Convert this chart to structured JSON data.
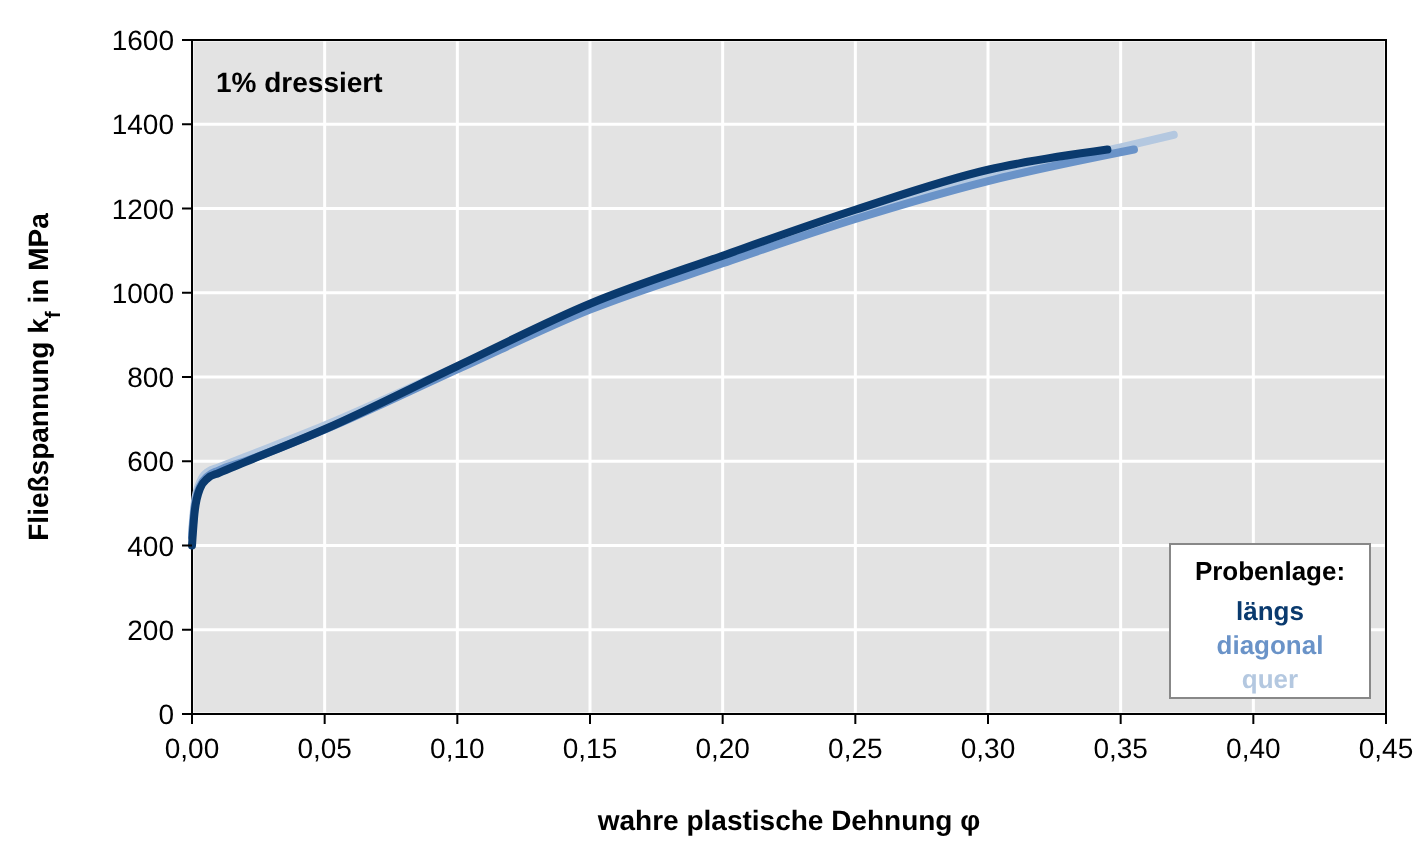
{
  "chart_data": {
    "type": "line",
    "xlabel": "wahre plastische Dehnung φ",
    "ylabel": "Fließspannung k$_{f}$ in MPa",
    "legend_title": "Probenlage:",
    "annotations": [
      "1% dressiert"
    ],
    "xlim": [
      0,
      0.45
    ],
    "xticks": [
      {
        "value": 0,
        "label": "0,00"
      },
      {
        "value": 0.05,
        "label": "0,05"
      },
      {
        "value": 0.1,
        "label": "0,10"
      },
      {
        "value": 0.15,
        "label": "0,15"
      },
      {
        "value": 0.2,
        "label": "0,20"
      },
      {
        "value": 0.25,
        "label": "0,25"
      },
      {
        "value": 0.3,
        "label": "0,30"
      },
      {
        "value": 0.35,
        "label": "0,35"
      },
      {
        "value": 0.4,
        "label": "0,40"
      },
      {
        "value": 0.45,
        "label": "0,45"
      }
    ],
    "ylim": [
      0,
      1600
    ],
    "yticks": [
      0,
      200,
      400,
      600,
      800,
      1000,
      1200,
      1400,
      1600
    ],
    "grid": true,
    "legend": "bottom right",
    "marker": "none",
    "line_style": "solid",
    "series": [
      {
        "name": "quer",
        "color": "#b4c8e0",
        "x": [
          0,
          0.001,
          0.003,
          0.006,
          0.01,
          0.02,
          0.05,
          0.1,
          0.15,
          0.2,
          0.25,
          0.3,
          0.35,
          0.37
        ],
        "values": [
          430,
          500,
          550,
          575,
          585,
          610,
          685,
          825,
          965,
          1075,
          1180,
          1275,
          1345,
          1375
        ]
      },
      {
        "name": "diagonal",
        "color": "#6a93c8",
        "x": [
          0,
          0.001,
          0.003,
          0.006,
          0.01,
          0.02,
          0.05,
          0.1,
          0.15,
          0.2,
          0.25,
          0.3,
          0.355
        ],
        "values": [
          420,
          490,
          540,
          565,
          578,
          600,
          675,
          818,
          960,
          1070,
          1175,
          1265,
          1340
        ]
      },
      {
        "name": "längs",
        "color": "#0a3a6e",
        "x": [
          0,
          0.001,
          0.003,
          0.006,
          0.01,
          0.02,
          0.05,
          0.1,
          0.15,
          0.2,
          0.25,
          0.3,
          0.345
        ],
        "values": [
          400,
          480,
          535,
          560,
          572,
          598,
          676,
          826,
          974,
          1088,
          1197,
          1292,
          1340
        ]
      }
    ]
  }
}
